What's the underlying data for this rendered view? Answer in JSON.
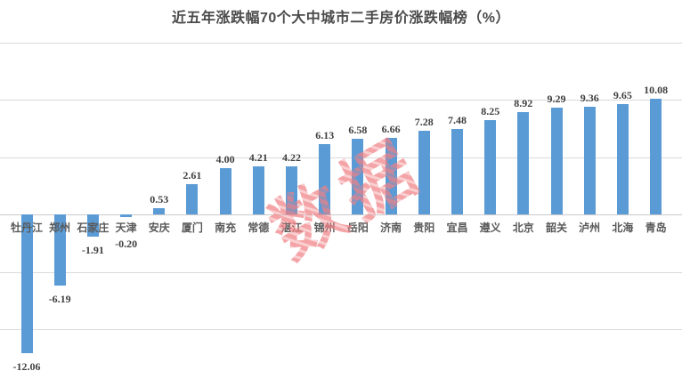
{
  "watermark": {
    "text": "数据宝",
    "color": "#F08084"
  },
  "colors": {
    "background": "#FFFFFF",
    "bar": "#5B9BD5",
    "gridline": "#DADADA",
    "axis_line": "#C9C9C9",
    "title_text": "#4A4A4A",
    "value_label": "#3F3F3F",
    "category_label": "#595959"
  },
  "chart_data": {
    "type": "bar",
    "title": "近五年涨跌幅70个大中城市二手房价涨跌幅榜（%）",
    "xlabel": "",
    "ylabel": "",
    "legend": "none",
    "grid": true,
    "ylim": [
      -15,
      15
    ],
    "gridline_step": 5,
    "categories": [
      "牡丹江",
      "郑州",
      "石家庄",
      "天津",
      "安庆",
      "厦门",
      "南充",
      "常德",
      "湛江",
      "锦州",
      "岳阳",
      "济南",
      "贵阳",
      "宜昌",
      "遵义",
      "北京",
      "韶关",
      "泸州",
      "北海",
      "青岛"
    ],
    "values": [
      -12.06,
      -6.19,
      -1.91,
      -0.2,
      0.53,
      2.61,
      4.0,
      4.21,
      4.22,
      6.13,
      6.58,
      6.66,
      7.28,
      7.48,
      8.25,
      8.92,
      9.29,
      9.36,
      9.65,
      10.08
    ],
    "labels": [
      "-12.06",
      "-6.19",
      "-1.91",
      "-0.20",
      "0.53",
      "2.61",
      "4.00",
      "4.21",
      "4.22",
      "6.13",
      "6.58",
      "6.66",
      "7.28",
      "7.48",
      "8.25",
      "8.92",
      "9.29",
      "9.36",
      "9.65",
      "10.08"
    ]
  }
}
